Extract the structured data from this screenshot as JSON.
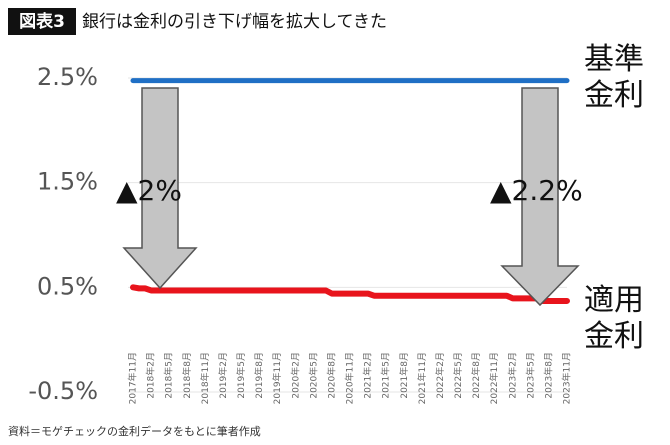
{
  "chart_data": {
    "type": "line",
    "badge": "図表3",
    "title": "銀行は金利の引き下げ幅を拡大してきた",
    "source": "資料＝モゲチェックの金利データをもとに筆者作成",
    "annotations": [
      "▲2%",
      "▲2.2%"
    ],
    "categories": [
      "2017年11月",
      null,
      null,
      "2018年2月",
      null,
      null,
      "2018年5月",
      null,
      null,
      "2018年8月",
      null,
      null,
      "2018年11月",
      null,
      null,
      "2019年2月",
      null,
      null,
      "2019年5月",
      null,
      null,
      "2019年8月",
      null,
      null,
      "2019年11月",
      null,
      null,
      "2020年2月",
      null,
      null,
      "2020年5月",
      null,
      null,
      "2020年8月",
      null,
      null,
      "2020年11月",
      null,
      null,
      "2021年2月",
      null,
      null,
      "2021年5月",
      null,
      null,
      "2021年8月",
      null,
      null,
      "2021年11月",
      null,
      null,
      "2022年2月",
      null,
      null,
      "2022年5月",
      null,
      null,
      "2022年8月",
      null,
      null,
      "2022年11月",
      null,
      null,
      "2023年2月",
      null,
      null,
      "2023年5月",
      null,
      null,
      "2023年8月",
      null,
      null,
      "2023年11月"
    ],
    "series": [
      {
        "name": "基準金利",
        "color": "#1f6fc5",
        "values": [
          2.475,
          2.475,
          2.475,
          2.475,
          2.475,
          2.475,
          2.475,
          2.475,
          2.475,
          2.475,
          2.475,
          2.475,
          2.475,
          2.475,
          2.475,
          2.475,
          2.475,
          2.475,
          2.475,
          2.475,
          2.475,
          2.475,
          2.475,
          2.475,
          2.475,
          2.475,
          2.475,
          2.475,
          2.475,
          2.475,
          2.475,
          2.475,
          2.475,
          2.475,
          2.475,
          2.475,
          2.475,
          2.475,
          2.475,
          2.475,
          2.475,
          2.475,
          2.475,
          2.475,
          2.475,
          2.475,
          2.475,
          2.475,
          2.475,
          2.475,
          2.475,
          2.475,
          2.475,
          2.475,
          2.475,
          2.475,
          2.475,
          2.475,
          2.475,
          2.475,
          2.475,
          2.475,
          2.475,
          2.475,
          2.475,
          2.475,
          2.475,
          2.475,
          2.475,
          2.475,
          2.475,
          2.475,
          2.475
        ]
      },
      {
        "name": "適用金利",
        "color": "#e8141c",
        "values": [
          0.5,
          0.49,
          0.49,
          0.47,
          0.47,
          0.47,
          0.47,
          0.47,
          0.47,
          0.47,
          0.47,
          0.47,
          0.47,
          0.47,
          0.47,
          0.47,
          0.47,
          0.47,
          0.47,
          0.47,
          0.47,
          0.47,
          0.47,
          0.47,
          0.47,
          0.47,
          0.47,
          0.47,
          0.47,
          0.47,
          0.47,
          0.47,
          0.47,
          0.44,
          0.44,
          0.44,
          0.44,
          0.44,
          0.44,
          0.44,
          0.42,
          0.42,
          0.42,
          0.42,
          0.42,
          0.42,
          0.42,
          0.42,
          0.42,
          0.42,
          0.42,
          0.42,
          0.42,
          0.42,
          0.42,
          0.42,
          0.42,
          0.42,
          0.42,
          0.42,
          0.42,
          0.42,
          0.42,
          0.395,
          0.395,
          0.395,
          0.395,
          0.395,
          0.37,
          0.37,
          0.37,
          0.37,
          0.37
        ]
      }
    ],
    "ylim": [
      -0.5,
      2.5
    ],
    "yticks": [
      {
        "value": -0.5,
        "label": "-0.5%"
      },
      {
        "value": 0.5,
        "label": "0.5%"
      },
      {
        "value": 1.5,
        "label": "1.5%"
      },
      {
        "value": 2.5,
        "label": "2.5%"
      }
    ],
    "grid": true
  }
}
